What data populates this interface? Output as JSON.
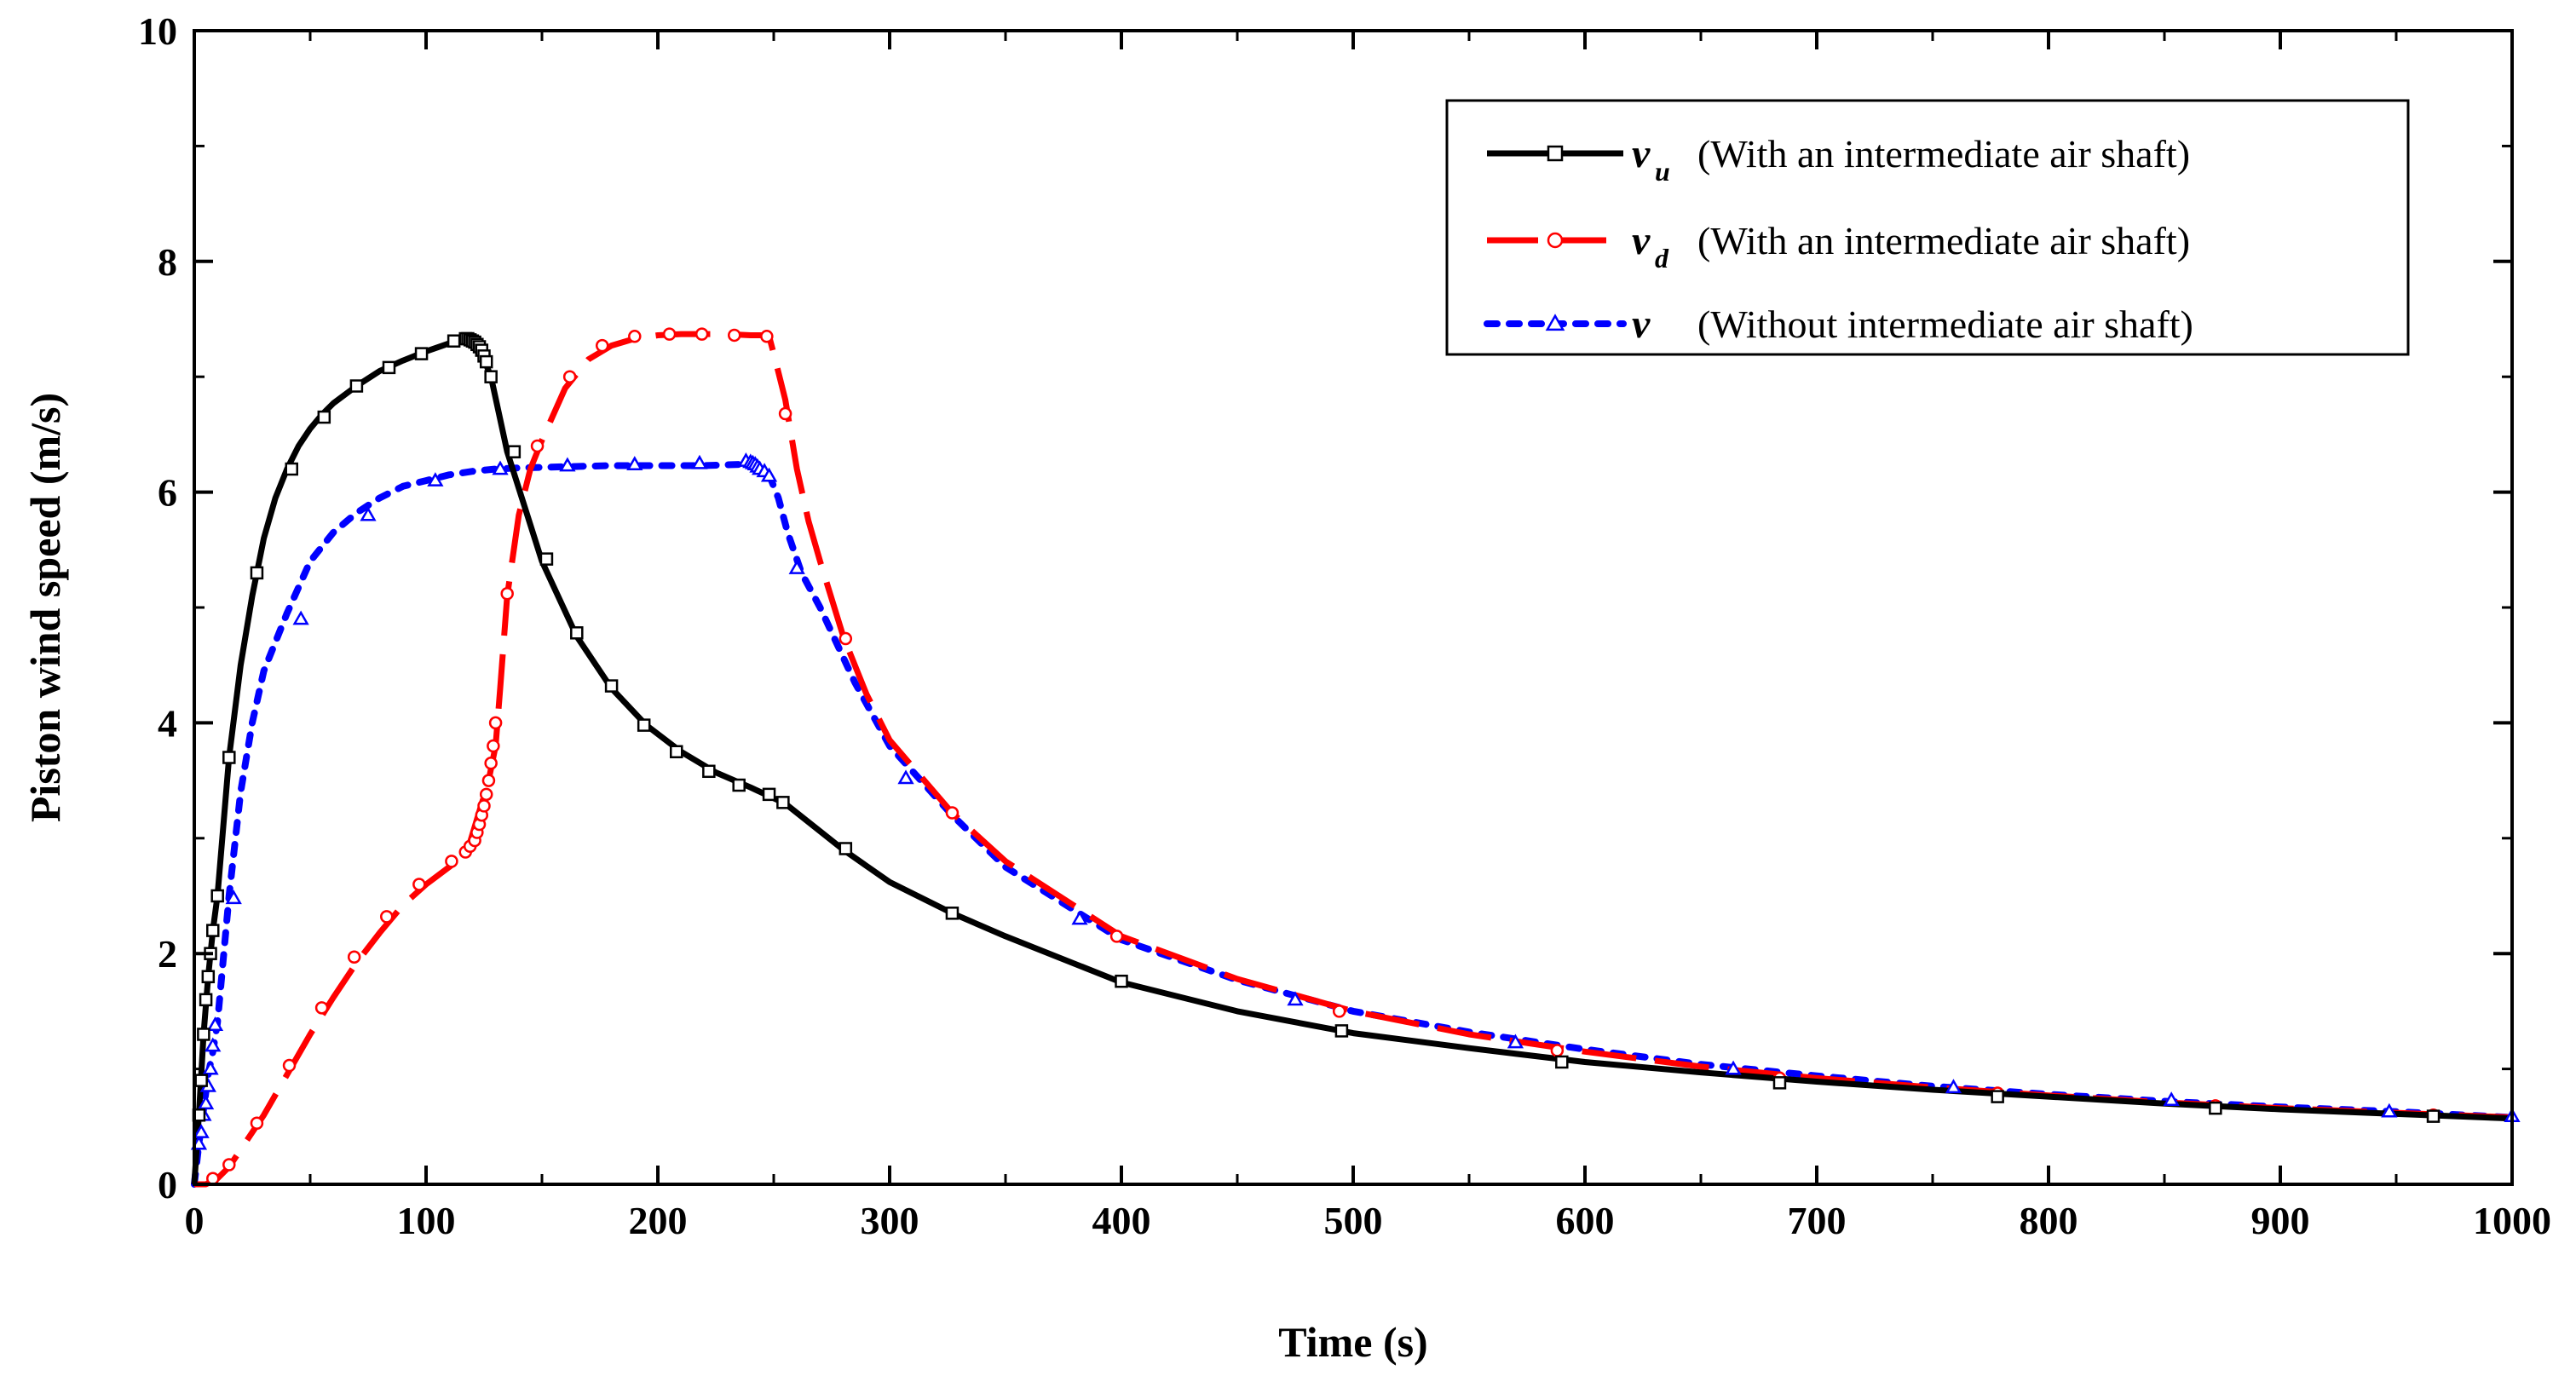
{
  "chart_data": {
    "type": "line",
    "title": "",
    "xlabel": "Time (s)",
    "ylabel": "Piston wind speed (m/s)",
    "xlim": [
      0,
      1000
    ],
    "ylim": [
      0,
      10
    ],
    "xticks": [
      0,
      100,
      200,
      300,
      400,
      500,
      600,
      700,
      800,
      900,
      1000
    ],
    "yticks": [
      0,
      2,
      4,
      6,
      8,
      10
    ],
    "grid": false,
    "legend_position": "top-right",
    "series": [
      {
        "name": "v_u",
        "symbol": "v",
        "subscript": "u",
        "label": "(With an intermediate air shaft)",
        "color": "#000000",
        "line_style": "solid",
        "marker": "square",
        "x": [
          0,
          2,
          4,
          6,
          8,
          10,
          15,
          20,
          25,
          30,
          35,
          40,
          45,
          50,
          55,
          60,
          70,
          80,
          90,
          100,
          110,
          118,
          121,
          123,
          125,
          128,
          135,
          150,
          165,
          180,
          195,
          210,
          225,
          240,
          255,
          280,
          300,
          327,
          350,
          400,
          450,
          500,
          550,
          600,
          650,
          700,
          750,
          800,
          850,
          900,
          950,
          1000
        ],
        "y": [
          0,
          0.6,
          1.3,
          1.8,
          2.2,
          2.5,
          3.7,
          4.5,
          5.1,
          5.6,
          5.95,
          6.2,
          6.4,
          6.55,
          6.67,
          6.77,
          6.92,
          7.05,
          7.14,
          7.22,
          7.29,
          7.33,
          7.3,
          7.25,
          7.15,
          7.0,
          6.35,
          5.4,
          4.75,
          4.3,
          3.98,
          3.75,
          3.57,
          3.44,
          3.3,
          2.9,
          2.62,
          2.35,
          2.15,
          1.75,
          1.5,
          1.31,
          1.18,
          1.06,
          0.97,
          0.89,
          0.82,
          0.76,
          0.7,
          0.65,
          0.61,
          0.57
        ],
        "marker_x": [
          2,
          3,
          4,
          5,
          6,
          7,
          8,
          10,
          15,
          27,
          42,
          56,
          70,
          84,
          98,
          112,
          117,
          118,
          119,
          120,
          121,
          122,
          123,
          124,
          125,
          126,
          128,
          138,
          152,
          165,
          180,
          194,
          208,
          222,
          235,
          248,
          254,
          281,
          327,
          400,
          495,
          590,
          684,
          778,
          872,
          966
        ],
        "marker_y": [
          0.6,
          0.9,
          1.3,
          1.6,
          1.8,
          2.0,
          2.2,
          2.5,
          3.7,
          5.3,
          6.2,
          6.65,
          6.92,
          7.08,
          7.2,
          7.31,
          7.33,
          7.33,
          7.32,
          7.31,
          7.3,
          7.28,
          7.26,
          7.23,
          7.18,
          7.13,
          7.0,
          6.35,
          5.42,
          4.78,
          4.32,
          3.98,
          3.75,
          3.58,
          3.46,
          3.38,
          3.31,
          2.91,
          2.35,
          1.76,
          1.33,
          1.06,
          0.88,
          0.76,
          0.66,
          0.59
        ]
      },
      {
        "name": "v_d",
        "symbol": "v",
        "subscript": "d",
        "label": "(With an intermediate air shaft)",
        "color": "#ff0000",
        "line_style": "dash",
        "marker": "circle",
        "x": [
          0,
          5,
          10,
          15,
          20,
          25,
          30,
          40,
          50,
          60,
          70,
          80,
          90,
          100,
          110,
          115,
          118,
          121,
          124,
          127,
          130,
          132,
          135,
          140,
          145,
          150,
          160,
          170,
          180,
          190,
          200,
          210,
          220,
          230,
          240,
          245,
          248,
          250,
          255,
          260,
          265,
          270,
          280,
          290,
          300,
          327,
          350,
          400,
          450,
          500,
          550,
          600,
          650,
          700,
          750,
          800,
          850,
          900,
          950,
          1000
        ],
        "y": [
          0,
          0.0,
          0.05,
          0.15,
          0.3,
          0.45,
          0.6,
          0.95,
          1.3,
          1.62,
          1.92,
          2.18,
          2.42,
          2.6,
          2.75,
          2.83,
          2.9,
          3.1,
          3.3,
          3.5,
          3.8,
          4.3,
          5.1,
          5.8,
          6.2,
          6.45,
          6.9,
          7.15,
          7.27,
          7.33,
          7.36,
          7.37,
          7.37,
          7.37,
          7.36,
          7.36,
          7.35,
          7.2,
          6.8,
          6.2,
          5.75,
          5.4,
          4.75,
          4.25,
          3.85,
          3.22,
          2.8,
          2.15,
          1.78,
          1.5,
          1.3,
          1.15,
          1.02,
          0.92,
          0.84,
          0.77,
          0.71,
          0.66,
          0.62,
          0.58
        ],
        "marker_x": [
          8,
          15,
          27,
          41,
          55,
          69,
          83,
          97,
          111,
          117,
          119,
          121,
          122,
          123,
          124,
          125,
          126,
          127,
          128,
          129,
          130,
          135,
          148,
          162,
          176,
          190,
          205,
          219,
          233,
          247,
          255,
          281,
          327,
          398,
          494,
          588,
          684,
          778,
          872,
          966
        ],
        "marker_y": [
          0.05,
          0.17,
          0.53,
          1.03,
          1.53,
          1.97,
          2.32,
          2.6,
          2.8,
          2.88,
          2.93,
          2.98,
          3.05,
          3.12,
          3.2,
          3.28,
          3.38,
          3.5,
          3.65,
          3.8,
          4.0,
          5.12,
          6.4,
          7.0,
          7.27,
          7.35,
          7.37,
          7.37,
          7.36,
          7.35,
          6.68,
          4.73,
          3.22,
          2.15,
          1.5,
          1.16,
          0.92,
          0.79,
          0.68,
          0.6
        ]
      },
      {
        "name": "v",
        "symbol": "v",
        "subscript": "",
        "label": "(Without intermediate air shaft)",
        "color": "#0000ff",
        "line_style": "dot",
        "marker": "triangle",
        "x": [
          0,
          2,
          4,
          6,
          8,
          10,
          15,
          20,
          25,
          30,
          40,
          50,
          60,
          70,
          80,
          90,
          100,
          110,
          120,
          130,
          140,
          160,
          180,
          200,
          220,
          235,
          240,
          243,
          245,
          248,
          252,
          256,
          262,
          270,
          285,
          300,
          327,
          350,
          400,
          450,
          500,
          550,
          600,
          650,
          700,
          750,
          800,
          850,
          900,
          950,
          1000
        ],
        "y": [
          0,
          0.35,
          0.65,
          0.95,
          1.15,
          1.4,
          2.5,
          3.4,
          4.0,
          4.45,
          4.95,
          5.4,
          5.65,
          5.82,
          5.95,
          6.05,
          6.1,
          6.15,
          6.18,
          6.2,
          6.21,
          6.22,
          6.23,
          6.23,
          6.23,
          6.24,
          6.24,
          6.22,
          6.2,
          6.15,
          5.95,
          5.65,
          5.3,
          5.0,
          4.35,
          3.8,
          3.2,
          2.75,
          2.12,
          1.77,
          1.5,
          1.32,
          1.17,
          1.04,
          0.94,
          0.85,
          0.78,
          0.72,
          0.67,
          0.63,
          0.58
        ],
        "marker_x": [
          2,
          3,
          4,
          5,
          6,
          7,
          8,
          9,
          17,
          46,
          75,
          104,
          132,
          161,
          190,
          218,
          238,
          240,
          241,
          242,
          243,
          244,
          246,
          248,
          260,
          307,
          382,
          475,
          570,
          664,
          759,
          853,
          947,
          1000
        ],
        "marker_y": [
          0.35,
          0.45,
          0.6,
          0.7,
          0.85,
          1.0,
          1.2,
          1.38,
          2.48,
          4.9,
          5.8,
          6.1,
          6.2,
          6.23,
          6.24,
          6.25,
          6.27,
          6.26,
          6.25,
          6.24,
          6.22,
          6.2,
          6.18,
          6.14,
          5.34,
          3.52,
          2.3,
          1.6,
          1.23,
          1.0,
          0.84,
          0.73,
          0.63,
          0.59
        ]
      }
    ]
  }
}
